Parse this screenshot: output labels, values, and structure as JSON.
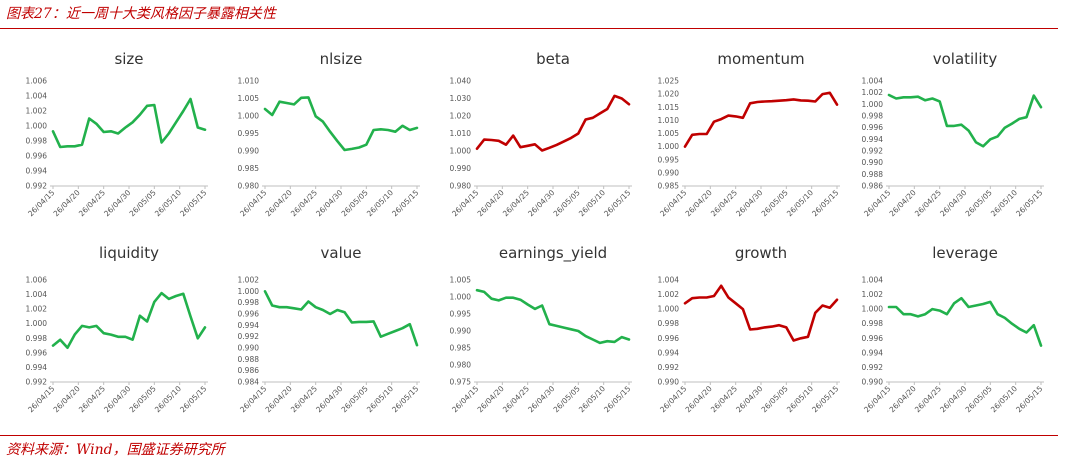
{
  "header": {
    "title": "图表27：近一周十大类风格因子暴露相关性"
  },
  "footer": {
    "source": "资料来源：Wind，国盛证券研究所"
  },
  "colors": {
    "positive": "#22b14c",
    "negative": "#c00000",
    "accent": "#c00000"
  },
  "chart_data": [
    {
      "type": "line",
      "title": "size",
      "color": "#22b14c",
      "yticks": [
        "1.006",
        "1.004",
        "1.002",
        "1.000",
        "0.998",
        "0.996",
        "0.994",
        "0.992"
      ],
      "ylim": [
        0.992,
        1.006
      ],
      "xticks": [
        "26/04/15",
        "26/04/20",
        "26/04/25",
        "26/04/30",
        "26/05/05",
        "26/05/10",
        "26/05/15"
      ],
      "x": [
        0,
        1,
        2,
        3,
        4,
        5,
        6,
        7,
        8,
        9,
        10,
        11,
        12,
        13,
        14,
        15,
        16,
        17,
        18,
        19,
        20,
        21
      ],
      "values": [
        0.9993,
        0.9972,
        0.9973,
        0.9973,
        0.9975,
        1.001,
        1.0003,
        0.9992,
        0.9993,
        0.999,
        0.9998,
        1.0005,
        1.0015,
        1.0027,
        1.0028,
        0.9978,
        0.999,
        1.0005,
        1.002,
        1.0036,
        0.9998,
        0.9995
      ]
    },
    {
      "type": "line",
      "title": "nlsize",
      "color": "#22b14c",
      "yticks": [
        "1.010",
        "1.005",
        "1.000",
        "0.995",
        "0.990",
        "0.985",
        "0.980"
      ],
      "ylim": [
        0.98,
        1.01
      ],
      "xticks": [
        "26/04/15",
        "26/04/20",
        "26/04/25",
        "26/04/30",
        "26/05/05",
        "26/05/10",
        "26/05/15"
      ],
      "x": [
        0,
        1,
        2,
        3,
        4,
        5,
        6,
        7,
        8,
        9,
        10,
        11,
        12,
        13,
        14,
        15,
        16,
        17,
        18,
        19,
        20,
        21
      ],
      "values": [
        1.002,
        1.0003,
        1.0041,
        1.0037,
        1.0033,
        1.0052,
        1.0053,
        0.9999,
        0.9984,
        0.9955,
        0.9928,
        0.9903,
        0.9906,
        0.991,
        0.9918,
        0.996,
        0.9962,
        0.996,
        0.9955,
        0.9972,
        0.996,
        0.9966
      ]
    },
    {
      "type": "line",
      "title": "beta",
      "color": "#c00000",
      "yticks": [
        "1.040",
        "1.030",
        "1.020",
        "1.010",
        "1.000",
        "0.990",
        "0.980"
      ],
      "ylim": [
        0.98,
        1.04
      ],
      "xticks": [
        "26/04/15",
        "26/04/20",
        "26/04/25",
        "26/04/30",
        "26/05/05",
        "26/05/10",
        "26/05/15"
      ],
      "x": [
        0,
        1,
        2,
        3,
        4,
        5,
        6,
        7,
        8,
        9,
        10,
        11,
        12,
        13,
        14,
        15,
        16,
        17,
        18,
        19,
        20,
        21
      ],
      "values": [
        1.0013,
        1.0065,
        1.0063,
        1.0058,
        1.0036,
        1.0088,
        1.0022,
        1.003,
        1.0038,
        1.0003,
        1.0018,
        1.0035,
        1.0055,
        1.0075,
        1.01,
        1.018,
        1.019,
        1.0215,
        1.024,
        1.0315,
        1.03,
        1.0267
      ]
    },
    {
      "type": "line",
      "title": "momentum",
      "color": "#c00000",
      "yticks": [
        "1.025",
        "1.020",
        "1.015",
        "1.010",
        "1.005",
        "1.000",
        "0.995",
        "0.990",
        "0.985"
      ],
      "ylim": [
        0.985,
        1.025
      ],
      "xticks": [
        "26/04/15",
        "26/04/20",
        "26/04/25",
        "26/04/30",
        "26/05/05",
        "26/05/10",
        "26/05/15"
      ],
      "x": [
        0,
        1,
        2,
        3,
        4,
        5,
        6,
        7,
        8,
        9,
        10,
        11,
        12,
        13,
        14,
        15,
        16,
        17,
        18,
        19,
        20,
        21
      ],
      "values": [
        1.0,
        1.0045,
        1.0048,
        1.0048,
        1.0095,
        1.0105,
        1.0118,
        1.0115,
        1.011,
        1.0165,
        1.017,
        1.0172,
        1.0173,
        1.0175,
        1.0177,
        1.018,
        1.0176,
        1.0175,
        1.0172,
        1.02,
        1.0205,
        1.016
      ]
    },
    {
      "type": "line",
      "title": "volatility",
      "color": "#22b14c",
      "yticks": [
        "1.004",
        "1.002",
        "1.000",
        "0.998",
        "0.996",
        "0.994",
        "0.992",
        "0.990",
        "0.988",
        "0.986"
      ],
      "ylim": [
        0.986,
        1.004
      ],
      "xticks": [
        "26/04/15",
        "26/04/20",
        "26/04/25",
        "26/04/30",
        "26/05/05",
        "26/05/10",
        "26/05/15"
      ],
      "x": [
        0,
        1,
        2,
        3,
        4,
        5,
        6,
        7,
        8,
        9,
        10,
        11,
        12,
        13,
        14,
        15,
        16,
        17,
        18,
        19,
        20,
        21
      ],
      "values": [
        1.0016,
        1.001,
        1.0012,
        1.0012,
        1.0013,
        1.0007,
        1.001,
        1.0005,
        0.9963,
        0.9963,
        0.9965,
        0.9955,
        0.9935,
        0.9928,
        0.994,
        0.9945,
        0.996,
        0.9967,
        0.9975,
        0.9978,
        1.0015,
        0.9995
      ]
    },
    {
      "type": "line",
      "title": "liquidity",
      "color": "#22b14c",
      "yticks": [
        "1.006",
        "1.004",
        "1.002",
        "1.000",
        "0.998",
        "0.996",
        "0.994",
        "0.992"
      ],
      "ylim": [
        0.992,
        1.006
      ],
      "xticks": [
        "26/04/15",
        "26/04/20",
        "26/04/25",
        "26/04/30",
        "26/05/05",
        "26/05/10",
        "26/05/15"
      ],
      "x": [
        0,
        1,
        2,
        3,
        4,
        5,
        6,
        7,
        8,
        9,
        10,
        11,
        12,
        13,
        14,
        15,
        16,
        17,
        18,
        19,
        20,
        21
      ],
      "values": [
        0.997,
        0.9978,
        0.9967,
        0.9985,
        0.9997,
        0.9995,
        0.9997,
        0.9987,
        0.9985,
        0.9982,
        0.9982,
        0.9978,
        1.0011,
        1.0003,
        1.003,
        1.0042,
        1.0034,
        1.0038,
        1.0041,
        1.001,
        0.998,
        0.9995
      ]
    },
    {
      "type": "line",
      "title": "value",
      "color": "#22b14c",
      "yticks": [
        "1.002",
        "1.000",
        "0.998",
        "0.996",
        "0.994",
        "0.992",
        "0.990",
        "0.988",
        "0.986",
        "0.984"
      ],
      "ylim": [
        0.984,
        1.002
      ],
      "xticks": [
        "26/04/15",
        "26/04/20",
        "26/04/25",
        "26/04/30",
        "26/05/05",
        "26/05/10",
        "26/05/15"
      ],
      "x": [
        0,
        1,
        2,
        3,
        4,
        5,
        6,
        7,
        8,
        9,
        10,
        11,
        12,
        13,
        14,
        15,
        16,
        17,
        18,
        19,
        20,
        21
      ],
      "values": [
        1.0,
        0.9975,
        0.9972,
        0.9972,
        0.997,
        0.9968,
        0.9982,
        0.9972,
        0.9967,
        0.996,
        0.9967,
        0.9963,
        0.9945,
        0.9946,
        0.9946,
        0.9947,
        0.992,
        0.9925,
        0.993,
        0.9935,
        0.9942,
        0.9905
      ]
    },
    {
      "type": "line",
      "title": "earnings_yield",
      "color": "#22b14c",
      "yticks": [
        "1.005",
        "1.000",
        "0.995",
        "0.990",
        "0.985",
        "0.980",
        "0.975"
      ],
      "ylim": [
        0.975,
        1.005
      ],
      "xticks": [
        "26/04/15",
        "26/04/20",
        "26/04/25",
        "26/04/30",
        "26/05/05",
        "26/05/10",
        "26/05/15"
      ],
      "x": [
        0,
        1,
        2,
        3,
        4,
        5,
        6,
        7,
        8,
        9,
        10,
        11,
        12,
        13,
        14,
        15,
        16,
        17,
        18,
        19,
        20,
        21
      ],
      "values": [
        1.002,
        1.0015,
        0.9995,
        0.999,
        0.9998,
        0.9998,
        0.9992,
        0.9978,
        0.9965,
        0.9975,
        0.992,
        0.9915,
        0.991,
        0.9905,
        0.99,
        0.9885,
        0.9875,
        0.9865,
        0.987,
        0.9868,
        0.9882,
        0.9875
      ]
    },
    {
      "type": "line",
      "title": "growth",
      "color": "#c00000",
      "yticks": [
        "1.004",
        "1.002",
        "1.000",
        "0.998",
        "0.996",
        "0.994",
        "0.992",
        "0.990"
      ],
      "ylim": [
        0.99,
        1.004
      ],
      "xticks": [
        "26/04/15",
        "26/04/20",
        "26/04/25",
        "26/04/30",
        "26/05/05",
        "26/05/10",
        "26/05/15"
      ],
      "x": [
        0,
        1,
        2,
        3,
        4,
        5,
        6,
        7,
        8,
        9,
        10,
        11,
        12,
        13,
        14,
        15,
        16,
        17,
        18,
        19,
        20,
        21
      ],
      "values": [
        1.0008,
        1.0015,
        1.0016,
        1.0016,
        1.0018,
        1.0032,
        1.0016,
        1.0008,
        1.0,
        0.9972,
        0.9973,
        0.9975,
        0.9976,
        0.9978,
        0.9975,
        0.9957,
        0.996,
        0.9962,
        0.9995,
        1.0005,
        1.0002,
        1.0013
      ]
    },
    {
      "type": "line",
      "title": "leverage",
      "color": "#22b14c",
      "yticks": [
        "1.004",
        "1.002",
        "1.000",
        "0.998",
        "0.996",
        "0.994",
        "0.992",
        "0.990"
      ],
      "ylim": [
        0.99,
        1.004
      ],
      "xticks": [
        "26/04/15",
        "26/04/20",
        "26/04/25",
        "26/04/30",
        "26/05/05",
        "26/05/10",
        "26/05/15"
      ],
      "x": [
        0,
        1,
        2,
        3,
        4,
        5,
        6,
        7,
        8,
        9,
        10,
        11,
        12,
        13,
        14,
        15,
        16,
        17,
        18,
        19,
        20,
        21
      ],
      "values": [
        1.0003,
        1.0003,
        0.9993,
        0.9993,
        0.999,
        0.9993,
        1.0,
        0.9998,
        0.9993,
        1.0008,
        1.0015,
        1.0003,
        1.0005,
        1.0007,
        1.001,
        0.9993,
        0.9988,
        0.998,
        0.9973,
        0.9968,
        0.9978,
        0.995
      ]
    }
  ]
}
